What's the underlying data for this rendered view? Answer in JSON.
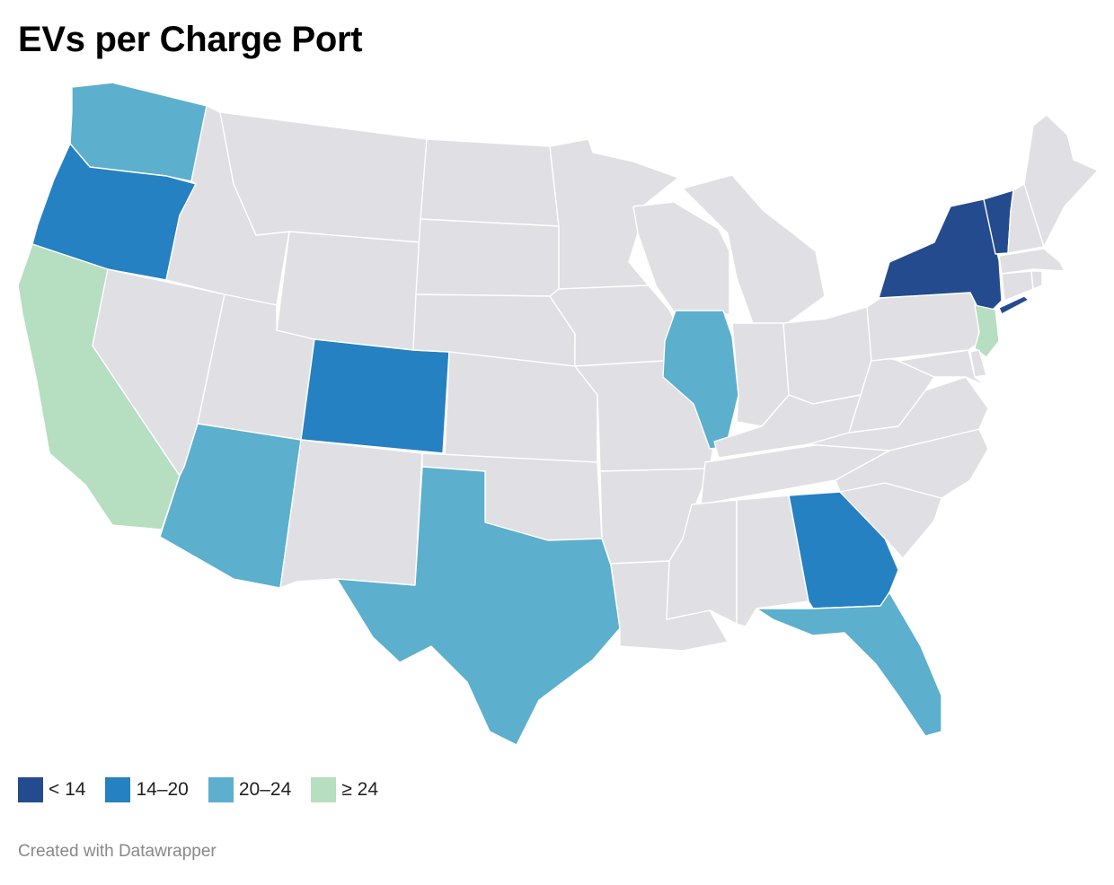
{
  "title": "EVs per Charge Port",
  "legend": [
    {
      "label": "< 14",
      "color": "#254b8f"
    },
    {
      "label": "14–20",
      "color": "#2581c1"
    },
    {
      "label": "20–24",
      "color": "#5cafcd"
    },
    {
      "label": "≥ 24",
      "color": "#b6dec0"
    }
  ],
  "no_data_color": "#e0dfe3",
  "footer": "Created with Datawrapper",
  "states": {
    "WA": "20–24",
    "OR": "14–20",
    "CA": "≥ 24",
    "NV": null,
    "ID": null,
    "MT": null,
    "WY": null,
    "UT": null,
    "AZ": "20–24",
    "CO": "14–20",
    "NM": null,
    "ND": null,
    "SD": null,
    "NE": null,
    "KS": null,
    "OK": null,
    "TX": "20–24",
    "MN": null,
    "IA": null,
    "MO": null,
    "AR": null,
    "LA": null,
    "WI": null,
    "IL": "20–24",
    "MI": null,
    "IN": null,
    "OH": null,
    "KY": null,
    "TN": null,
    "MS": null,
    "AL": null,
    "GA": "14–20",
    "FL": "20–24",
    "SC": null,
    "NC": null,
    "VA": null,
    "WV": null,
    "PA": null,
    "NY": "< 14",
    "VT": "< 14",
    "NH": null,
    "ME": null,
    "MA": null,
    "CT": null,
    "RI": null,
    "NJ": "≥ 24",
    "DE": null,
    "MD": null
  }
}
